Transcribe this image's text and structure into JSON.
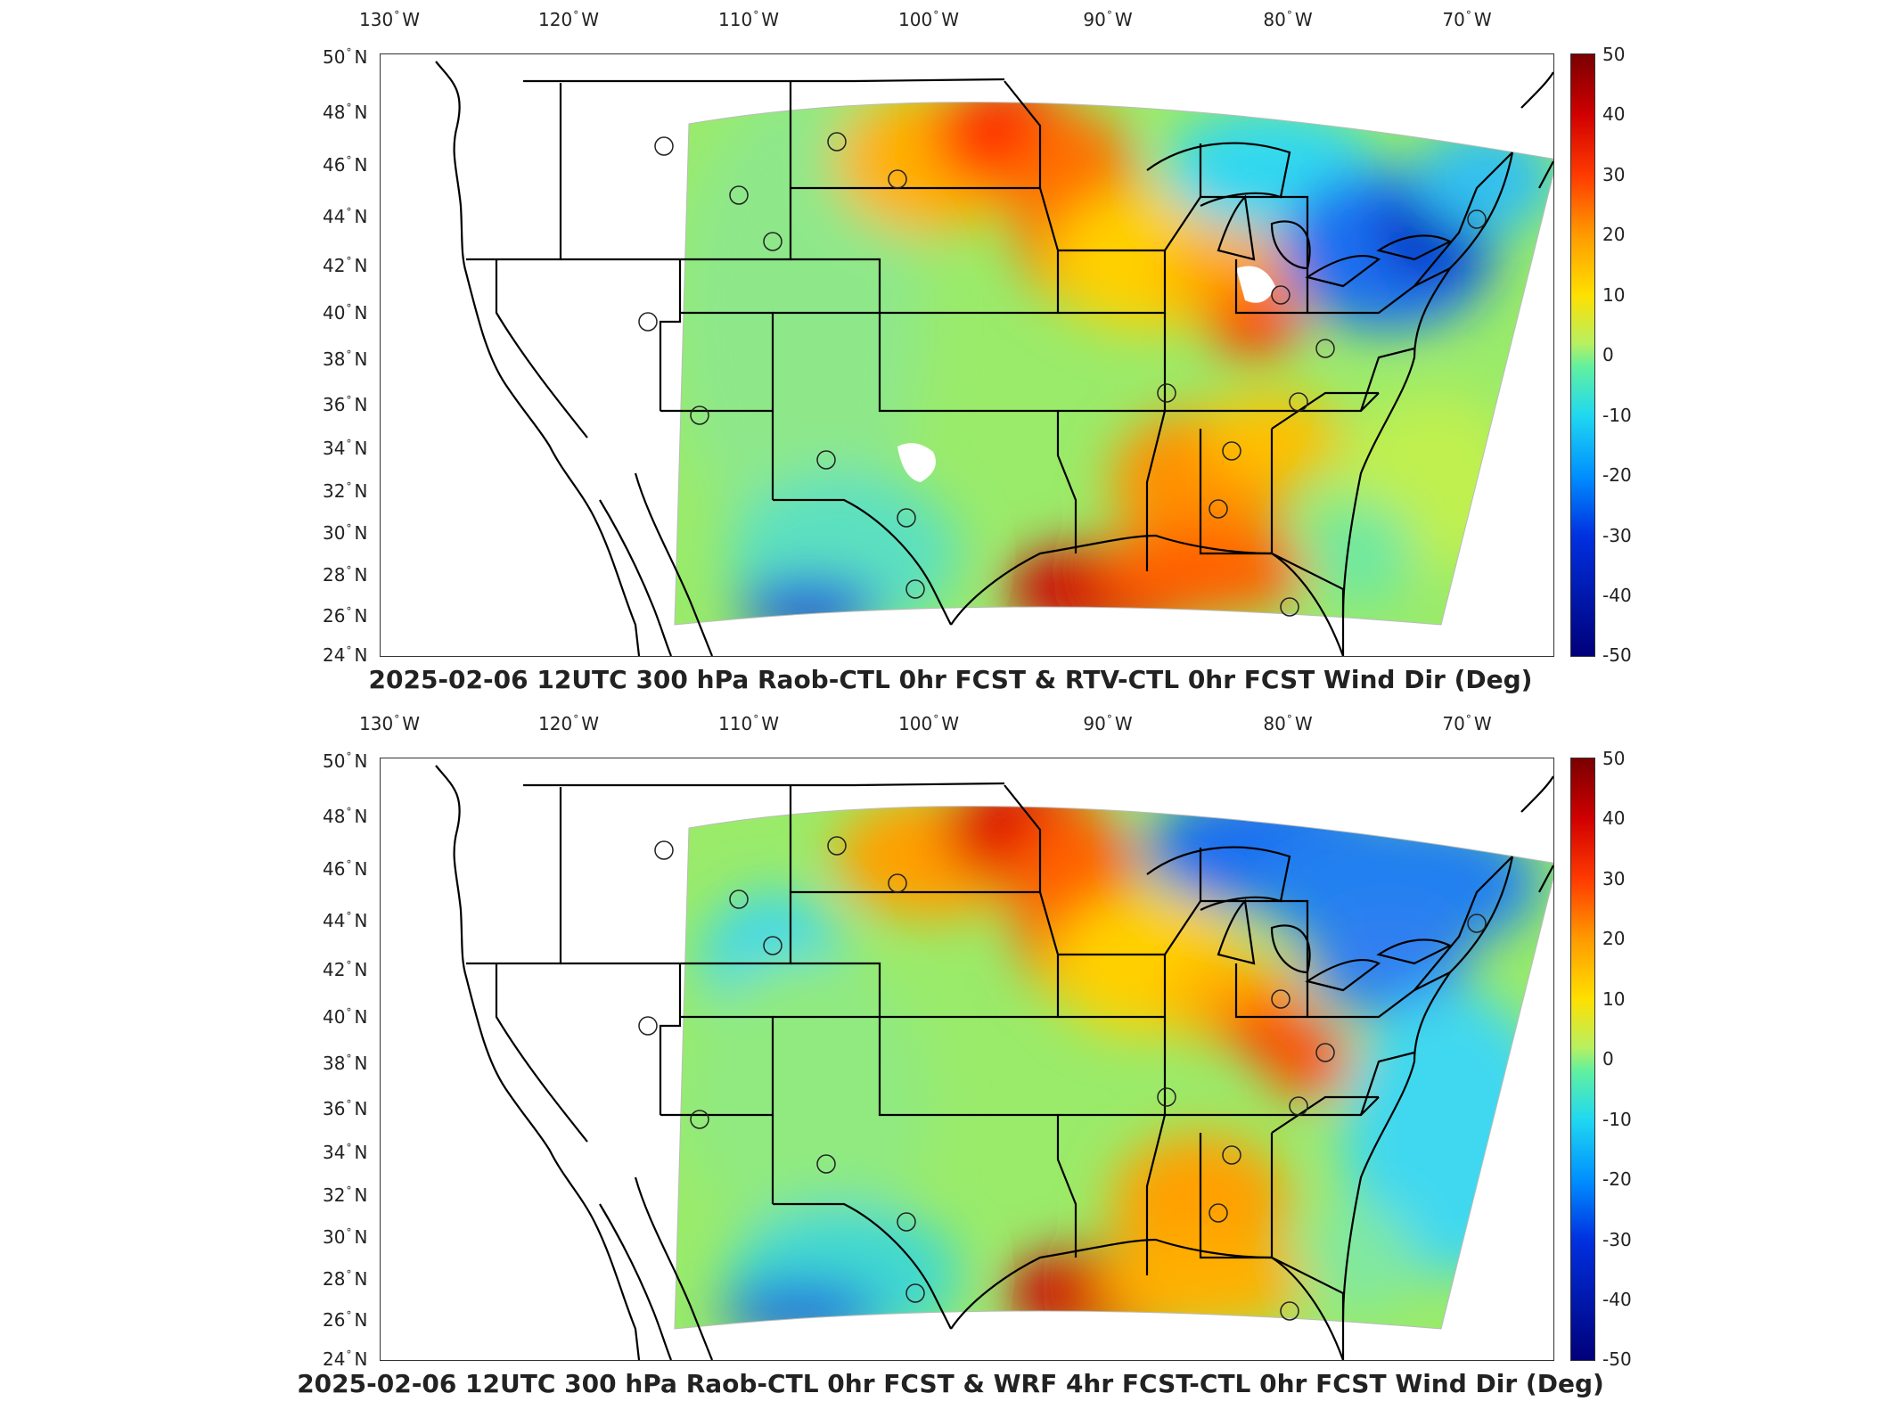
{
  "panels": [
    {
      "title": "2025-02-06 12UTC 300 hPa Raob-CTL 0hr FCST & RTV-CTL 0hr FCST Wind Dir (Deg)",
      "lon_labels": [
        "130",
        "120",
        "110",
        "100",
        "90",
        "80",
        "70"
      ],
      "lon_suffix": "W",
      "lat_labels": [
        "50",
        "48",
        "46",
        "44",
        "42",
        "40",
        "38",
        "36",
        "34",
        "32",
        "30",
        "28",
        "26",
        "24"
      ],
      "lat_suffix": "N",
      "colorbar_ticks": [
        "50",
        "40",
        "30",
        "20",
        "10",
        "0",
        "-10",
        "-20",
        "-30",
        "-40",
        "-50"
      ]
    },
    {
      "title": "2025-02-06 12UTC 300 hPa Raob-CTL 0hr FCST & WRF 4hr FCST-CTL 0hr FCST Wind Dir (Deg)",
      "lon_labels": [
        "130",
        "120",
        "110",
        "100",
        "90",
        "80",
        "70"
      ],
      "lon_suffix": "W",
      "lat_labels": [
        "50",
        "48",
        "46",
        "44",
        "42",
        "40",
        "38",
        "36",
        "34",
        "32",
        "30",
        "28",
        "26",
        "24"
      ],
      "lat_suffix": "N",
      "colorbar_ticks": [
        "50",
        "40",
        "30",
        "20",
        "10",
        "0",
        "-10",
        "-20",
        "-30",
        "-40",
        "-50"
      ]
    }
  ],
  "colorbar_range": [
    -50,
    50
  ],
  "colors": {
    "max": "#7a0000",
    "high": "#ff3a00",
    "mid_high": "#ffe000",
    "zero": "#80f080",
    "mid_low": "#20d8f0",
    "low": "#0030e0",
    "min": "#00007a"
  }
}
